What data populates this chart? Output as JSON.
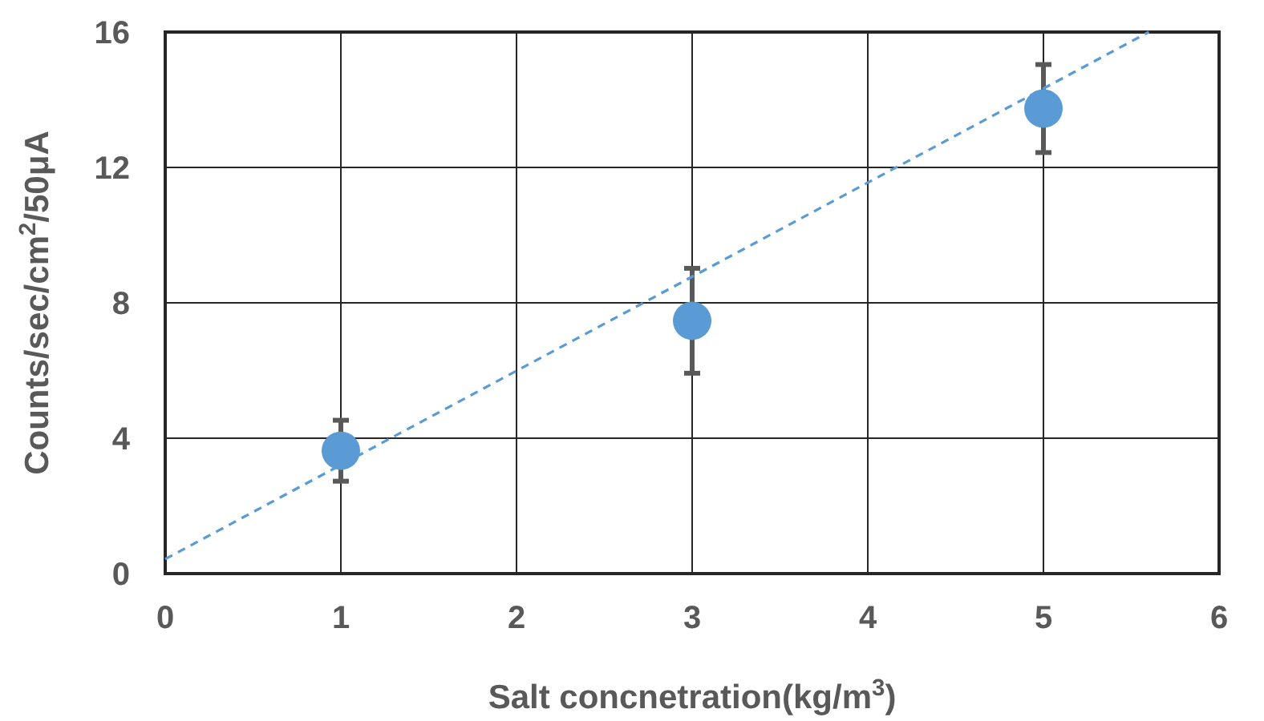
{
  "chart_data": {
    "type": "scatter",
    "xlabel": "Salt concnetration(kg/m$^{3}$)",
    "ylabel": "Counts/sec/cm$^{2}$/50μA",
    "xlim": [
      0,
      6
    ],
    "xticks": [
      0,
      1,
      2,
      3,
      4,
      5,
      6
    ],
    "ylim": [
      0,
      16
    ],
    "yticks": [
      0,
      4,
      8,
      12,
      16
    ],
    "grid": true,
    "marker": "circle",
    "series": [
      {
        "color": "#5b9bd5",
        "x": [
          1,
          3,
          5
        ],
        "values": [
          3.63,
          7.47,
          13.74
        ],
        "errors": [
          0.9,
          1.55,
          1.3
        ]
      },
      {
        "type": "line",
        "color": "#5b9bd5",
        "line_style": "dashed",
        "marker": "none",
        "x": [
          0,
          5.6
        ],
        "values": [
          0.43,
          16
        ]
      }
    ]
  }
}
